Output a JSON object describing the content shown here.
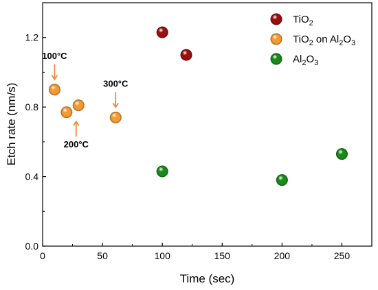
{
  "chart_data": {
    "type": "scatter",
    "title": "",
    "xlabel": "Time (sec)",
    "ylabel": "Etch rate (nm/s)",
    "xlim": [
      0,
      275
    ],
    "ylim": [
      0,
      1.4
    ],
    "xticks": [
      0,
      50,
      100,
      150,
      200,
      250
    ],
    "xtick_labels": [
      "0",
      "50",
      "100",
      "150",
      "200",
      "250"
    ],
    "yticks": [
      0.0,
      0.4,
      0.8,
      1.2
    ],
    "ytick_labels": [
      "0.0",
      "0.4",
      "0.8",
      "1.2"
    ],
    "grid": false,
    "legend_position": "top-right",
    "series": [
      {
        "name": "TiO2",
        "legend_main": "TiO",
        "legend_sub": "2",
        "color": "#9a1010",
        "points": [
          {
            "x": 100,
            "y": 1.23
          },
          {
            "x": 120,
            "y": 1.1
          }
        ]
      },
      {
        "name": "TiO2 on Al2O3",
        "color": "#f59a30",
        "legend_parts": [
          {
            "text": "TiO",
            "sub": false
          },
          {
            "text": "2",
            "sub": true
          },
          {
            "text": " on Al",
            "sub": false
          },
          {
            "text": "2",
            "sub": true
          },
          {
            "text": "O",
            "sub": false
          },
          {
            "text": "3",
            "sub": true
          }
        ],
        "points": [
          {
            "x": 10,
            "y": 0.9
          },
          {
            "x": 20,
            "y": 0.77
          },
          {
            "x": 30,
            "y": 0.81
          },
          {
            "x": 61,
            "y": 0.74
          }
        ]
      },
      {
        "name": "Al2O3",
        "color": "#1a8a1a",
        "legend_parts": [
          {
            "text": "Al",
            "sub": false
          },
          {
            "text": "2",
            "sub": true
          },
          {
            "text": "O",
            "sub": false
          },
          {
            "text": "3",
            "sub": true
          }
        ],
        "points": [
          {
            "x": 100,
            "y": 0.43
          },
          {
            "x": 200,
            "y": 0.38
          },
          {
            "x": 250,
            "y": 0.53
          }
        ]
      }
    ],
    "annotations": [
      {
        "text": "100°C",
        "x": 10,
        "y": 0.9,
        "arrow": "down"
      },
      {
        "text": "200°C",
        "x": 28,
        "y": 0.78,
        "arrow": "up"
      },
      {
        "text": "300°C",
        "x": 61,
        "y": 0.74,
        "arrow": "down"
      }
    ]
  }
}
